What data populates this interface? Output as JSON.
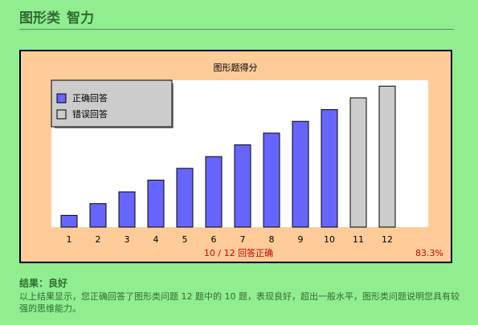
{
  "header": {
    "category": "图形类",
    "subject": "智力"
  },
  "colors": {
    "correct": "#6666ff",
    "wrong": "#cccccc",
    "score_text": "#cc0000",
    "panel_bg": "#ffcc99",
    "page_bg": "#90ee90"
  },
  "chart_data": {
    "type": "bar",
    "title": "图形题得分",
    "categories": [
      "1",
      "2",
      "3",
      "4",
      "5",
      "6",
      "7",
      "8",
      "9",
      "10",
      "11",
      "12"
    ],
    "values": [
      1,
      2,
      3,
      4,
      5,
      6,
      7,
      8,
      9,
      10,
      11,
      12
    ],
    "status": [
      "correct",
      "correct",
      "correct",
      "correct",
      "correct",
      "correct",
      "correct",
      "correct",
      "correct",
      "correct",
      "wrong",
      "wrong"
    ],
    "ylim": [
      0,
      12.5
    ],
    "grid": false,
    "legend_position": "top-left",
    "legend": [
      {
        "key": "correct",
        "label": "正确回答"
      },
      {
        "key": "wrong",
        "label": "错误回答"
      }
    ],
    "score_label": "10 / 12 回答正确",
    "percent_label": "83.3%"
  },
  "result": {
    "heading": "结果：良好",
    "text": "以上结果显示，您正确回答了图形类问题 12 题中的 10 题，表现良好，超出一般水平，图形类问题说明您具有较强的思维能力。"
  }
}
